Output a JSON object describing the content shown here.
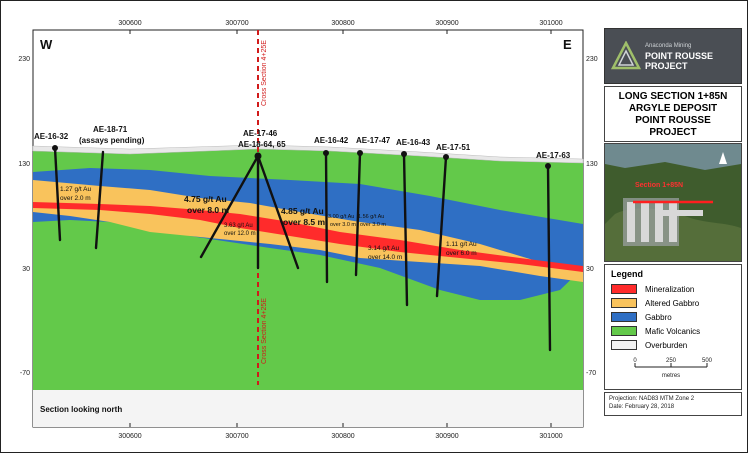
{
  "section": {
    "west_label": "W",
    "east_label": "E",
    "footer_note": "Section looking north",
    "cross_section_label": "Cross Section 4+25E",
    "x_ticks": [
      "300600",
      "300700",
      "300800",
      "300900",
      "301000"
    ],
    "y_ticks": [
      "230",
      "130",
      "30",
      "-70"
    ],
    "drill_holes": [
      {
        "name": "AE-16-32"
      },
      {
        "name": "AE-18-71",
        "note": "(assays pending)"
      },
      {
        "name": "AE-17-46",
        "note": "AE-18-64, 65"
      },
      {
        "name": "AE-16-42"
      },
      {
        "name": "AE-17-47"
      },
      {
        "name": "AE-16-43"
      },
      {
        "name": "AE-17-51"
      },
      {
        "name": "AE-17-63"
      }
    ],
    "intercepts": [
      {
        "grade": "1.27 g/t Au",
        "width": "over 2.0 m"
      },
      {
        "grade": "4.75 g/t Au",
        "width": "over 8.0 m"
      },
      {
        "grade": "3.63 g/t Au",
        "width": "over 12.0 m"
      },
      {
        "grade": "4.85 g/t Au",
        "width": "over 8.5 m"
      },
      {
        "grade": "3.00 g/t Au",
        "width": "over 3.0 m"
      },
      {
        "grade": "1.56 g/t Au",
        "width": "over 3.0 m"
      },
      {
        "grade": "3.14 g/t Au",
        "width": "over 14.0 m"
      },
      {
        "grade": "1.11 g/t Au",
        "width": "over 6.0 m"
      }
    ]
  },
  "logo": {
    "company": "Anaconda Mining",
    "project_line1": "POINT ROUSSE",
    "project_line2": "PROJECT"
  },
  "title": {
    "line1": "LONG SECTION 1+85N",
    "line2": "ARGYLE DEPOSIT",
    "line3": "POINT ROUSSE",
    "line4": "PROJECT"
  },
  "inset_map": {
    "section_label": "Section 1+85N"
  },
  "legend": {
    "title": "Legend",
    "items": [
      {
        "label": "Mineralization",
        "color": "#ff2b2b"
      },
      {
        "label": "Altered Gabbro",
        "color": "#f9c35c"
      },
      {
        "label": "Gabbro",
        "color": "#2f6fc4"
      },
      {
        "label": "Mafic Volcanics",
        "color": "#63c94a"
      },
      {
        "label": "Overburden",
        "color": "#f2f2f2"
      }
    ],
    "scale_ticks": [
      "0",
      "250",
      "500"
    ],
    "scale_unit": "metres"
  },
  "projection": {
    "line1": "Projection: NAD83 MTM Zone 2",
    "line2": "Date: February 28, 2018"
  },
  "colors": {
    "overburden": "#f2f2f2",
    "mafic_volcanics": "#63c94a",
    "gabbro": "#2f6fc4",
    "altered_gabbro": "#f9c35c",
    "mineralization": "#ff2b2b",
    "cross_section_line": "#d11a1a",
    "drill_hole": "#111111"
  }
}
